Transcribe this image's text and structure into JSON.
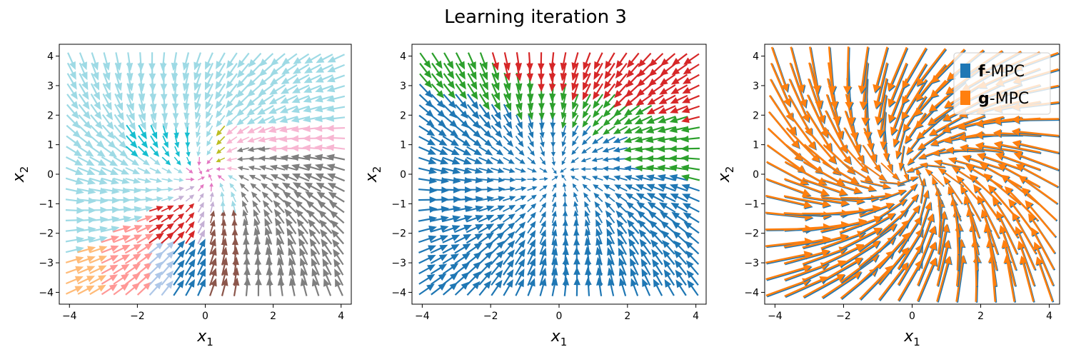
{
  "figure": {
    "title": "Learning iteration 3"
  },
  "colors": {
    "tab20": [
      "#1f77b4",
      "#aec7e8",
      "#ff7f0e",
      "#ffbb78",
      "#2ca02c",
      "#98df8a",
      "#d62728",
      "#ff9896",
      "#9467bd",
      "#c5b0d5",
      "#8c564b",
      "#c49c94",
      "#e377c2",
      "#f7b6d2",
      "#7f7f7f",
      "#c7c7c7",
      "#bcbd22",
      "#dbdb8d",
      "#17becf",
      "#9edae5"
    ],
    "tab10": [
      "#1f77b4",
      "#ff7f0e",
      "#2ca02c",
      "#d62728"
    ],
    "f_mpc": "#1f77b4",
    "g_mpc": "#ff7f0e"
  },
  "chart_data": [
    {
      "type": "quiver",
      "panel": "left",
      "xlabel": "x1",
      "ylabel": "x2",
      "xlim": [
        -4.3,
        4.3
      ],
      "ylim": [
        -4.4,
        4.4
      ],
      "xticks": [
        "−4",
        "−2",
        "0",
        "2",
        "4"
      ],
      "yticks": [
        "−4",
        "−3",
        "−2",
        "−1",
        "0",
        "1",
        "2",
        "3",
        "4"
      ],
      "grid": [
        -4,
        4,
        24
      ],
      "coloring": "tab20 regions"
    },
    {
      "type": "quiver",
      "panel": "middle",
      "xlabel": "x1",
      "ylabel": "x2",
      "xlim": [
        -4.3,
        4.3
      ],
      "ylim": [
        -4.4,
        4.4
      ],
      "xticks": [
        "−4",
        "−2",
        "0",
        "2",
        "4"
      ],
      "yticks": [
        "−4",
        "−3",
        "−2",
        "−1",
        "0",
        "1",
        "2",
        "3",
        "4"
      ],
      "grid": [
        -4,
        4,
        24
      ],
      "coloring": "tab10 regions"
    },
    {
      "type": "quiver",
      "panel": "right",
      "xlabel": "x1",
      "ylabel": "x2",
      "xlim": [
        -4.3,
        4.3
      ],
      "ylim": [
        -4.4,
        4.4
      ],
      "xticks": [
        "−4",
        "−2",
        "0",
        "2",
        "4"
      ],
      "yticks": [
        "−4",
        "−3",
        "−2",
        "−1",
        "0",
        "1",
        "2",
        "3",
        "4"
      ],
      "grid": [
        -4,
        4,
        16
      ],
      "legend": {
        "position": "top-right",
        "entries": [
          {
            "bold": "f",
            "rest": "-MPC",
            "color": "#1f77b4"
          },
          {
            "bold": "g",
            "rest": "-MPC",
            "color": "#ff7f0e"
          }
        ]
      }
    }
  ]
}
